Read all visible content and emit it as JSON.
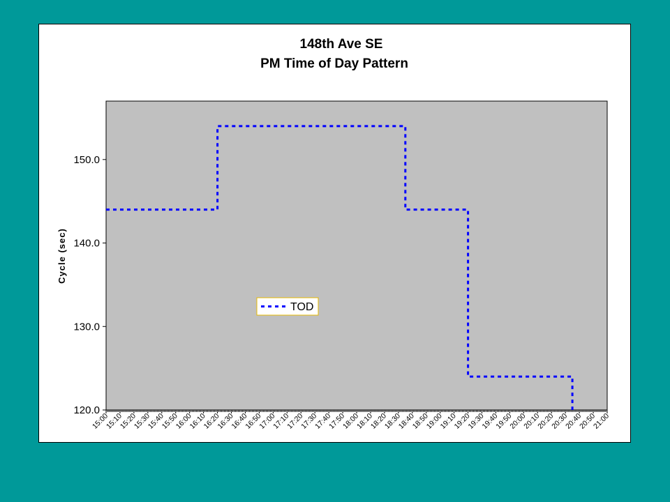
{
  "colors": {
    "page_background": "#009999",
    "card_background": "#ffffff",
    "plot_background": "#c0c0c0",
    "series_line": "#0000ff",
    "legend_border": "#e6b800"
  },
  "chart_data": {
    "type": "line",
    "title": "148th Ave SE",
    "subtitle": "PM Time of Day Pattern",
    "xlabel": "",
    "ylabel": "Cycle (sec)",
    "ylim": [
      120,
      157
    ],
    "yticks": [
      "120.0",
      "130.0",
      "140.0",
      "150.0"
    ],
    "grid": false,
    "legend_placement": "center-left",
    "xticks": [
      "15:00",
      "15:10",
      "15:20",
      "15:30",
      "15:40",
      "15:50",
      "16:00",
      "16:10",
      "16:20",
      "16:30",
      "16:40",
      "16:50",
      "17:00",
      "17:10",
      "17:20",
      "17:30",
      "17:40",
      "17:50",
      "18:00",
      "18:10",
      "18:20",
      "18:30",
      "18:40",
      "18:50",
      "19:00",
      "19:10",
      "19:20",
      "19:30",
      "19:40",
      "19:50",
      "20:00",
      "20:10",
      "20:20",
      "20:30",
      "20:40",
      "20:50",
      "21:00"
    ],
    "series": [
      {
        "name": "TOD",
        "style": "dashed-step",
        "points": [
          {
            "x": "15:00",
            "y": 144
          },
          {
            "x": "16:20",
            "y": 144
          },
          {
            "x": "16:20",
            "y": 154
          },
          {
            "x": "18:35",
            "y": 154
          },
          {
            "x": "18:35",
            "y": 144
          },
          {
            "x": "19:20",
            "y": 144
          },
          {
            "x": "19:20",
            "y": 124
          },
          {
            "x": "20:35",
            "y": 124
          },
          {
            "x": "20:35",
            "y": 120
          }
        ]
      }
    ]
  }
}
